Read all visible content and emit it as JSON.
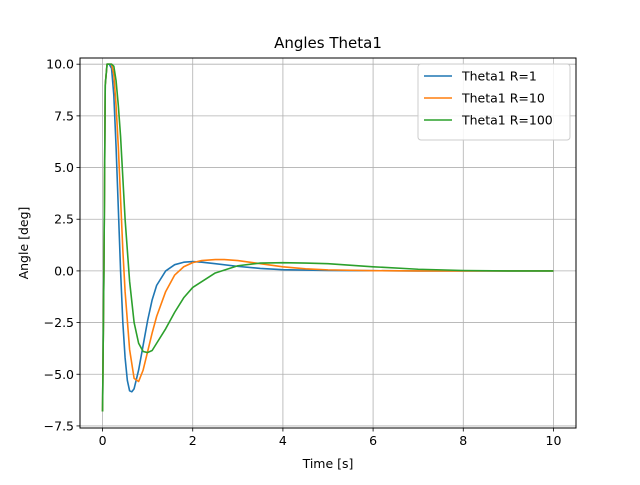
{
  "chart_data": {
    "type": "line",
    "title": "Angles Theta1",
    "xlabel": "Time [s]",
    "ylabel": "Angle [deg]",
    "xlim": [
      -0.5,
      10.5
    ],
    "ylim": [
      -7.6,
      10.3
    ],
    "xticks": [
      0,
      2,
      4,
      6,
      8,
      10
    ],
    "xtick_labels": [
      "0",
      "2",
      "4",
      "6",
      "8",
      "10"
    ],
    "yticks": [
      -7.5,
      -5.0,
      -2.5,
      0.0,
      2.5,
      5.0,
      7.5,
      10.0
    ],
    "ytick_labels": [
      "−7.5",
      "−5.0",
      "−2.5",
      "0.0",
      "2.5",
      "5.0",
      "7.5",
      "10.0"
    ],
    "grid": true,
    "legend_position": "top-right",
    "series": [
      {
        "name": "Theta1 R=1",
        "color": "#1f77b4",
        "x": [
          0,
          0.03,
          0.06,
          0.1,
          0.15,
          0.2,
          0.25,
          0.3,
          0.35,
          0.4,
          0.45,
          0.5,
          0.55,
          0.6,
          0.65,
          0.7,
          0.8,
          0.9,
          1.0,
          1.1,
          1.2,
          1.4,
          1.6,
          1.8,
          2.0,
          2.2,
          2.5,
          3.0,
          3.5,
          4.0,
          5.0,
          6.0,
          7.0,
          8.0,
          9.0,
          10.0
        ],
        "y": [
          -6.8,
          0.0,
          9.0,
          10.0,
          10.0,
          9.8,
          8.5,
          6.0,
          3.0,
          0.0,
          -2.5,
          -4.2,
          -5.3,
          -5.8,
          -5.85,
          -5.7,
          -4.8,
          -3.6,
          -2.4,
          -1.4,
          -0.7,
          0.0,
          0.3,
          0.42,
          0.45,
          0.42,
          0.35,
          0.22,
          0.12,
          0.06,
          0.02,
          0.01,
          0.0,
          0.0,
          0.0,
          0.0
        ]
      },
      {
        "name": "Theta1 R=10",
        "color": "#ff7f0e",
        "x": [
          0,
          0.03,
          0.06,
          0.1,
          0.15,
          0.2,
          0.25,
          0.3,
          0.35,
          0.4,
          0.45,
          0.5,
          0.6,
          0.7,
          0.8,
          0.9,
          1.0,
          1.1,
          1.2,
          1.4,
          1.6,
          1.8,
          2.0,
          2.2,
          2.5,
          2.7,
          3.0,
          3.5,
          4.0,
          4.5,
          5.0,
          6.0,
          7.0,
          8.0,
          9.0,
          10.0
        ],
        "y": [
          -6.8,
          0.0,
          9.0,
          10.0,
          10.0,
          10.0,
          9.5,
          8.0,
          6.0,
          3.5,
          1.0,
          -1.0,
          -3.8,
          -5.2,
          -5.35,
          -4.8,
          -3.9,
          -3.0,
          -2.2,
          -1.0,
          -0.2,
          0.2,
          0.4,
          0.5,
          0.55,
          0.55,
          0.5,
          0.35,
          0.2,
          0.1,
          0.05,
          0.01,
          0.0,
          0.0,
          0.0,
          0.0
        ]
      },
      {
        "name": "Theta1 R=100",
        "color": "#2ca02c",
        "x": [
          0,
          0.03,
          0.06,
          0.1,
          0.15,
          0.2,
          0.25,
          0.3,
          0.35,
          0.4,
          0.45,
          0.5,
          0.6,
          0.7,
          0.8,
          0.9,
          1.0,
          1.1,
          1.2,
          1.4,
          1.6,
          1.8,
          2.0,
          2.5,
          3.0,
          3.5,
          4.0,
          4.5,
          5.0,
          6.0,
          7.0,
          8.0,
          9.0,
          10.0
        ],
        "y": [
          -6.8,
          0.0,
          9.0,
          10.0,
          10.0,
          10.0,
          9.9,
          9.2,
          8.0,
          6.5,
          4.5,
          2.5,
          -0.5,
          -2.5,
          -3.5,
          -3.9,
          -3.95,
          -3.85,
          -3.5,
          -2.8,
          -2.0,
          -1.3,
          -0.8,
          -0.1,
          0.25,
          0.38,
          0.4,
          0.38,
          0.35,
          0.2,
          0.08,
          0.02,
          0.0,
          0.0
        ]
      }
    ]
  }
}
